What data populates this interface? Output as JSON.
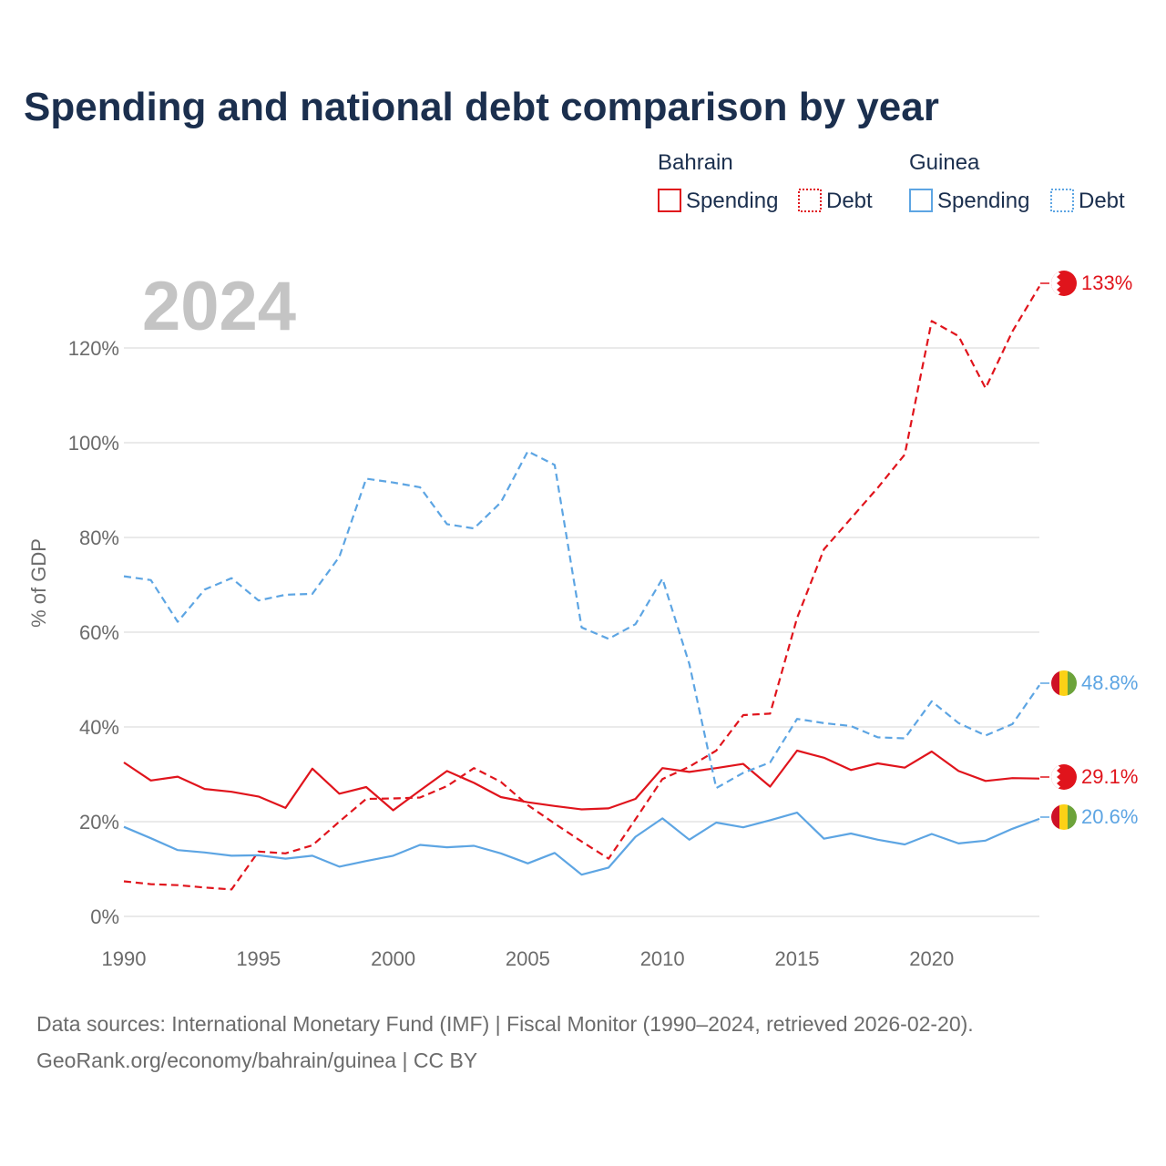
{
  "title": "Spending and national debt comparison by year",
  "year_watermark": "2024",
  "legend": {
    "groups": [
      {
        "country": "Bahrain",
        "color": "#e0141c",
        "items": [
          {
            "label": "Spending",
            "style": "solid"
          },
          {
            "label": "Debt",
            "style": "dotted"
          }
        ]
      },
      {
        "country": "Guinea",
        "color": "#5da5e3",
        "items": [
          {
            "label": "Spending",
            "style": "solid"
          },
          {
            "label": "Debt",
            "style": "dotted"
          }
        ]
      }
    ]
  },
  "end_labels": [
    {
      "text": "133%",
      "color": "#e0141c",
      "flag": "bahrain",
      "series": "Bahrain Debt"
    },
    {
      "text": "48.8%",
      "color": "#5da5e3",
      "flag": "guinea",
      "series": "Guinea Debt"
    },
    {
      "text": "29.1%",
      "color": "#e0141c",
      "flag": "bahrain",
      "series": "Bahrain Spending"
    },
    {
      "text": "20.6%",
      "color": "#5da5e3",
      "flag": "guinea",
      "series": "Guinea Spending"
    }
  ],
  "source": {
    "line1": "Data sources: International Monetary Fund (IMF) | Fiscal Monitor (1990–2024, retrieved 2026-02-20).",
    "line2": "GeoRank.org/economy/bahrain/guinea | CC BY"
  },
  "chart_data": {
    "type": "line",
    "title": "Spending and national debt comparison by year",
    "xlabel": "",
    "ylabel": "% of GDP",
    "xlim": [
      1990,
      2024
    ],
    "ylim": [
      0,
      135
    ],
    "x_ticks": [
      1990,
      1995,
      2000,
      2005,
      2010,
      2015,
      2020
    ],
    "y_ticks": [
      0,
      20,
      40,
      60,
      80,
      100,
      120
    ],
    "y_tick_labels": [
      "0%",
      "20%",
      "40%",
      "60%",
      "80%",
      "100%",
      "120%"
    ],
    "grid": true,
    "x": [
      1990,
      1991,
      1992,
      1993,
      1994,
      1995,
      1996,
      1997,
      1998,
      1999,
      2000,
      2001,
      2002,
      2003,
      2004,
      2005,
      2006,
      2007,
      2008,
      2009,
      2010,
      2011,
      2012,
      2013,
      2014,
      2015,
      2016,
      2017,
      2018,
      2019,
      2020,
      2021,
      2022,
      2023,
      2024
    ],
    "series": [
      {
        "name": "Bahrain Spending",
        "country": "Bahrain",
        "measure": "Spending",
        "color": "#e0141c",
        "dash": "solid",
        "values": [
          32.5,
          28.7,
          29.5,
          26.9,
          26.3,
          25.3,
          22.9,
          31.2,
          25.9,
          27.3,
          22.4,
          26.6,
          30.7,
          28.2,
          25.2,
          24.1,
          23.3,
          22.6,
          22.8,
          24.8,
          31.3,
          30.5,
          31.3,
          32.2,
          27.4,
          35.0,
          33.5,
          30.9,
          32.3,
          31.4,
          34.8,
          30.7,
          28.6,
          29.2,
          29.1
        ]
      },
      {
        "name": "Bahrain Debt",
        "country": "Bahrain",
        "measure": "Debt",
        "color": "#e0141c",
        "dash": "dashed",
        "values": [
          7.4,
          6.8,
          6.6,
          6.1,
          5.7,
          13.7,
          13.3,
          15.0,
          20.0,
          24.8,
          24.9,
          25.1,
          27.5,
          31.3,
          28.4,
          23.5,
          19.6,
          15.8,
          12.2,
          20.5,
          29.0,
          31.6,
          35.0,
          42.5,
          42.8,
          63.0,
          77.5,
          84.0,
          90.5,
          97.5,
          125.7,
          122.5,
          111.5,
          123.5,
          133.0
        ]
      },
      {
        "name": "Guinea Spending",
        "country": "Guinea",
        "measure": "Spending",
        "color": "#5da5e3",
        "dash": "solid",
        "values": [
          18.9,
          16.5,
          14.0,
          13.5,
          12.8,
          12.9,
          12.2,
          12.8,
          10.5,
          11.7,
          12.8,
          15.1,
          14.6,
          14.9,
          13.3,
          11.2,
          13.4,
          8.8,
          10.3,
          16.8,
          20.7,
          16.2,
          19.8,
          18.8,
          20.3,
          21.9,
          16.4,
          17.5,
          16.2,
          15.2,
          17.4,
          15.4,
          16.0,
          18.5,
          20.6
        ]
      },
      {
        "name": "Guinea Debt",
        "country": "Guinea",
        "measure": "Debt",
        "color": "#5da5e3",
        "dash": "dashed",
        "values": [
          71.8,
          71.0,
          62.2,
          69.0,
          71.4,
          66.7,
          67.9,
          68.1,
          75.9,
          92.4,
          91.6,
          90.6,
          82.8,
          81.9,
          87.4,
          98.2,
          95.3,
          61.0,
          58.6,
          61.7,
          71.3,
          53.3,
          27.1,
          30.3,
          32.5,
          41.7,
          40.8,
          40.2,
          37.8,
          37.6,
          45.4,
          40.8,
          38.2,
          40.6,
          48.8
        ]
      }
    ],
    "legend": "top-right"
  }
}
